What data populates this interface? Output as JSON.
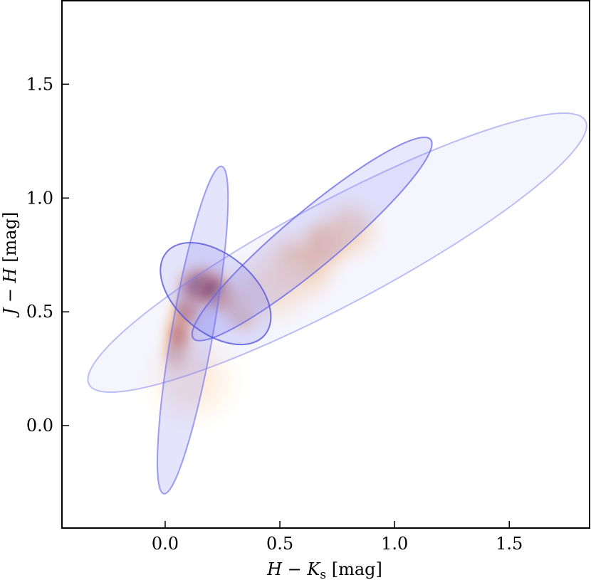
{
  "chart_data": {
    "type": "scatter",
    "title": "",
    "xlabel": {
      "main": "H − K",
      "sub": "s",
      "unit": " [mag]"
    },
    "ylabel": {
      "main": "J − H",
      "unit": " [mag]"
    },
    "xlim": [
      -0.45,
      1.85
    ],
    "ylim": [
      -0.45,
      1.87
    ],
    "xticks": [
      0.0,
      0.5,
      1.0,
      1.5
    ],
    "xtick_labels": [
      "0.0",
      "0.5",
      "1.0",
      "1.5"
    ],
    "yticks": [
      0.0,
      0.5,
      1.0,
      1.5
    ],
    "ytick_labels": [
      "0.0",
      "0.5",
      "1.0",
      "1.5"
    ],
    "grid": false,
    "legend": "none",
    "density": {
      "description_free": true,
      "cmap": "gist_heat_r",
      "blobs": [
        {
          "x": 0.05,
          "y": 0.32,
          "sx": 0.035,
          "sy": 0.05,
          "w": 0.95
        },
        {
          "x": 0.06,
          "y": 0.4,
          "sx": 0.035,
          "sy": 0.06,
          "w": 0.7
        },
        {
          "x": 0.09,
          "y": 0.5,
          "sx": 0.04,
          "sy": 0.04,
          "w": 0.55
        },
        {
          "x": 0.16,
          "y": 0.61,
          "sx": 0.06,
          "sy": 0.05,
          "w": 1.0
        },
        {
          "x": 0.22,
          "y": 0.59,
          "sx": 0.05,
          "sy": 0.04,
          "w": 0.95
        },
        {
          "x": 0.29,
          "y": 0.54,
          "sx": 0.05,
          "sy": 0.04,
          "w": 0.45
        },
        {
          "x": 0.34,
          "y": 0.48,
          "sx": 0.04,
          "sy": 0.04,
          "w": 0.3
        },
        {
          "x": 0.7,
          "y": 0.8,
          "sx": 0.06,
          "sy": 0.06,
          "w": 0.5
        },
        {
          "x": 0.58,
          "y": 0.7,
          "sx": 0.09,
          "sy": 0.08,
          "w": 0.3
        },
        {
          "x": 0.8,
          "y": 0.86,
          "sx": 0.07,
          "sy": 0.07,
          "w": 0.2
        },
        {
          "x": 0.45,
          "y": 0.6,
          "sx": 0.1,
          "sy": 0.08,
          "w": 0.12
        },
        {
          "x": 0.12,
          "y": 0.2,
          "sx": 0.1,
          "sy": 0.1,
          "w": 0.08
        }
      ]
    },
    "ellipses": [
      {
        "cx": 0.75,
        "cy": 0.76,
        "width": 2.45,
        "height": 0.45,
        "angle_deg": 28,
        "fill": "#6b6bf0",
        "fill_opacity": 0.07,
        "stroke": "#8888ee",
        "stroke_opacity": 0.55
      },
      {
        "cx": 0.12,
        "cy": 0.42,
        "width": 1.45,
        "height": 0.18,
        "angle_deg": 80,
        "fill": "#6b6bf0",
        "fill_opacity": 0.18,
        "stroke": "#7777ee",
        "stroke_opacity": 0.7
      },
      {
        "cx": 0.64,
        "cy": 0.82,
        "width": 1.35,
        "height": 0.24,
        "angle_deg": 40,
        "fill": "#6b6bf0",
        "fill_opacity": 0.16,
        "stroke": "#6666e6",
        "stroke_opacity": 0.75
      },
      {
        "cx": 0.22,
        "cy": 0.58,
        "width": 0.56,
        "height": 0.34,
        "angle_deg": -40,
        "fill": "#6b6bf0",
        "fill_opacity": 0.18,
        "stroke": "#5555dd",
        "stroke_opacity": 0.8
      }
    ],
    "colors": {
      "ellipse": "#6b6bf0",
      "axes": "#000000"
    }
  }
}
